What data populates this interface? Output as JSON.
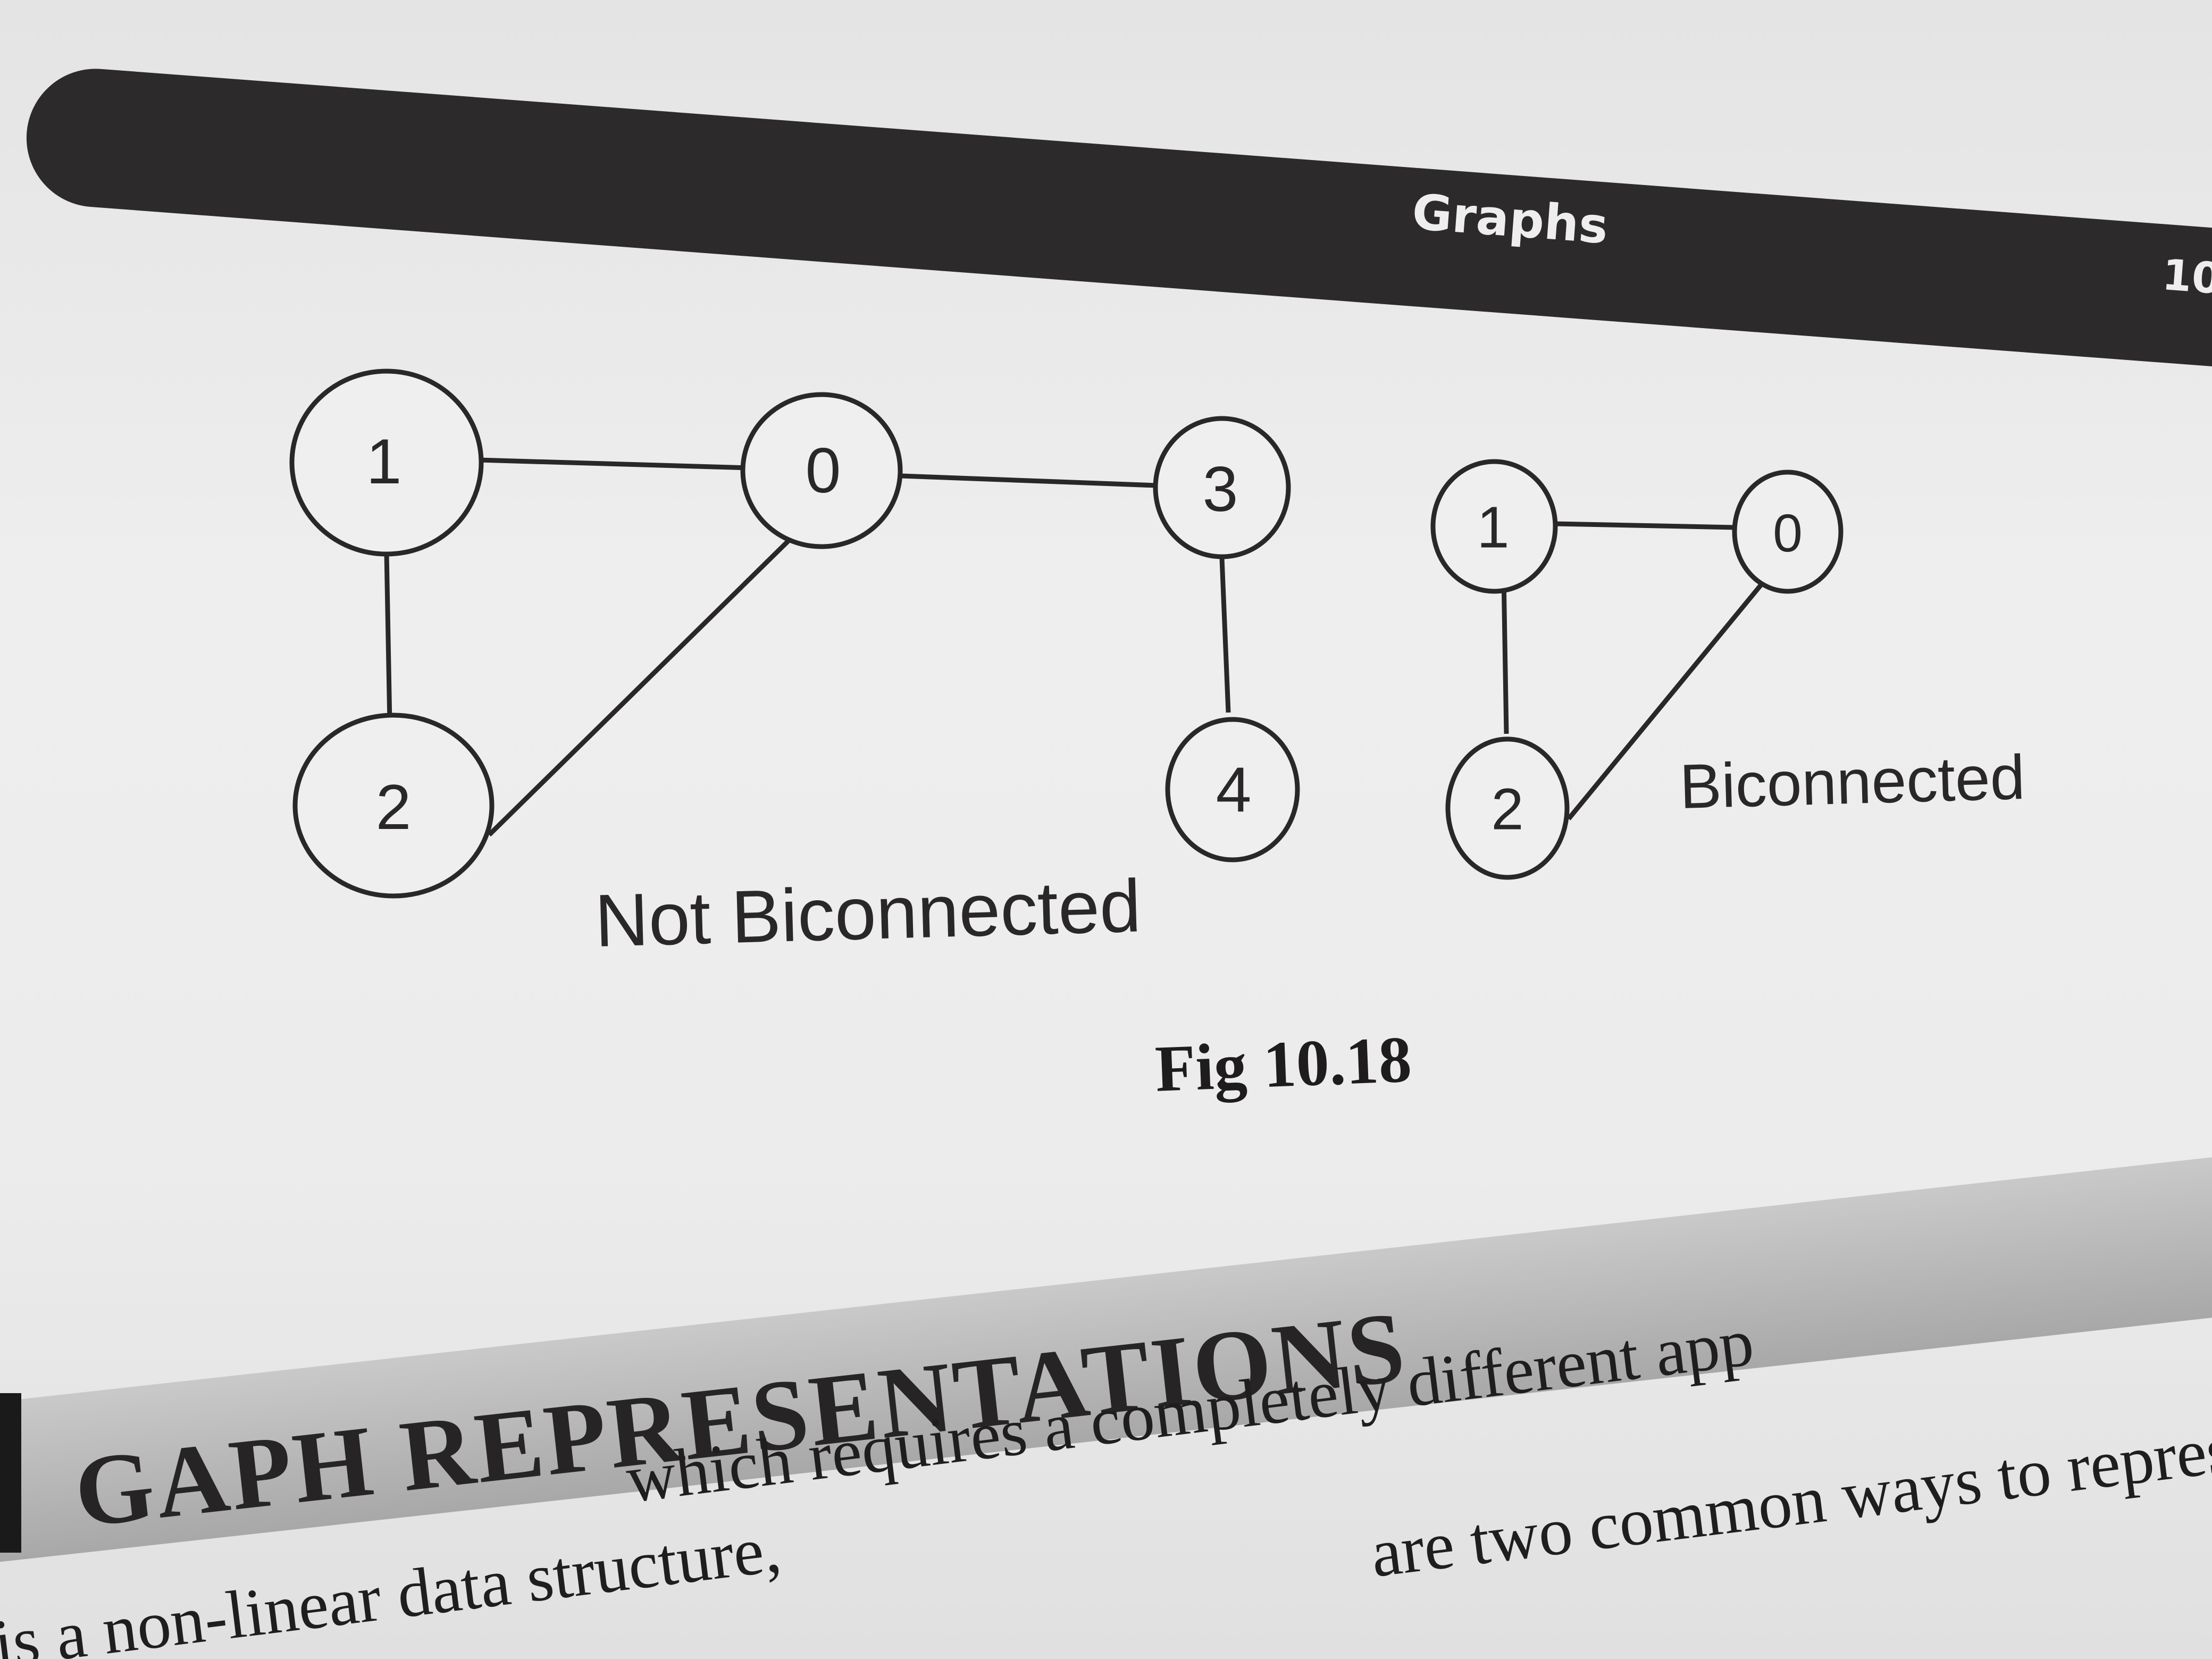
{
  "header": {
    "title": "Graphs",
    "page_number": "10"
  },
  "figure": {
    "left_graph": {
      "caption": "Not Biconnected",
      "nodes": [
        "1",
        "0",
        "3",
        "2",
        "4"
      ],
      "edges": [
        [
          "1",
          "0"
        ],
        [
          "0",
          "3"
        ],
        [
          "1",
          "2"
        ],
        [
          "2",
          "0"
        ],
        [
          "3",
          "4"
        ]
      ]
    },
    "right_graph": {
      "caption": "Biconnected",
      "nodes": [
        "1",
        "0",
        "2"
      ],
      "edges": [
        [
          "1",
          "0"
        ],
        [
          "1",
          "2"
        ],
        [
          "2",
          "0"
        ]
      ]
    },
    "caption": "Fig 10.18"
  },
  "section": {
    "title": "GAPH REPRESENTATIONS",
    "body_lines": [
      "which requires a completely different app",
      "are two common ways to represent a graph as shown",
      "is a non-linear data structure,"
    ]
  }
}
